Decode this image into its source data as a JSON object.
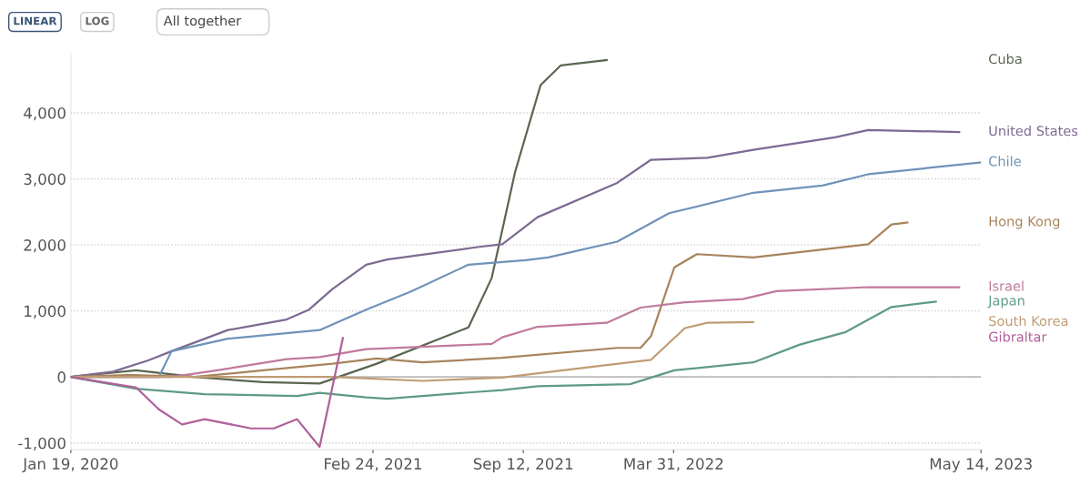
{
  "chart_data": {
    "type": "line",
    "annotations": [
      "LINEAR",
      "LOG",
      "All together"
    ],
    "xlim": [
      "2020-01-19",
      "2023-05-14"
    ],
    "xticks": [
      {
        "value": "2020-01-19",
        "label": "Jan 19, 2020"
      },
      {
        "value": "2021-02-24",
        "label": "Feb 24, 2021"
      },
      {
        "value": "2021-09-12",
        "label": "Sep 12, 2021"
      },
      {
        "value": "2022-03-31",
        "label": "Mar 31, 2022"
      },
      {
        "value": "2023-05-14",
        "label": "May 14, 2023"
      }
    ],
    "ylim": [
      -1100,
      4900
    ],
    "yticks": [
      {
        "value": -1000,
        "label": "-1,000"
      },
      0,
      {
        "value": 1000,
        "label": "1,000"
      },
      {
        "value": 2000,
        "label": "2,000"
      },
      {
        "value": 3000,
        "label": "3,000"
      },
      {
        "value": 4000,
        "label": "4,000"
      }
    ],
    "grid": "y",
    "legend": false,
    "marker": "none",
    "line_style": "solid",
    "ref_lines": [
      {
        "axis": "y",
        "value": 0,
        "color": "#bbbbbb"
      }
    ],
    "series": [
      {
        "name": "Cuba",
        "color": "#5b6650",
        "x": [
          "2020-01-19",
          "2020-04-15",
          "2020-07-01",
          "2020-10-01",
          "2020-12-15",
          "2021-03-01",
          "2021-07-01",
          "2021-08-01",
          "2021-09-01",
          "2021-10-05",
          "2021-11-01",
          "2022-01-01"
        ],
        "values": [
          0,
          100,
          0,
          -80,
          -100,
          200,
          750,
          1500,
          3100,
          4420,
          4720,
          4800
        ]
      },
      {
        "name": "United States",
        "color": "#7d6a92",
        "x": [
          "2020-01-19",
          "2020-03-15",
          "2020-05-01",
          "2020-06-01",
          "2020-08-15",
          "2020-11-01",
          "2020-12-01",
          "2021-01-01",
          "2021-02-15",
          "2021-03-15",
          "2021-07-15",
          "2021-08-15",
          "2021-10-01",
          "2022-01-15",
          "2022-03-01",
          "2022-05-15",
          "2022-07-15",
          "2022-11-01",
          "2022-12-15",
          "2023-04-15"
        ],
        "values": [
          0,
          80,
          250,
          390,
          710,
          870,
          1020,
          1330,
          1700,
          1780,
          1970,
          2010,
          2420,
          2940,
          3290,
          3320,
          3440,
          3630,
          3740,
          3710
        ]
      },
      {
        "name": "Chile",
        "color": "#6f93b8",
        "x": [
          "2020-01-19",
          "2020-05-15",
          "2020-06-01",
          "2020-08-15",
          "2020-12-15",
          "2021-02-15",
          "2021-04-15",
          "2021-07-01",
          "2021-09-15",
          "2021-10-15",
          "2022-01-15",
          "2022-03-25",
          "2022-07-15",
          "2022-10-15",
          "2022-12-15",
          "2023-05-14"
        ],
        "values": [
          0,
          0,
          390,
          580,
          710,
          1020,
          1290,
          1700,
          1770,
          1810,
          2050,
          2480,
          2790,
          2900,
          3070,
          3250
        ]
      },
      {
        "name": "Hong Kong",
        "color": "#a8845e",
        "x": [
          "2020-01-19",
          "2020-04-01",
          "2020-07-01",
          "2020-10-01",
          "2021-01-01",
          "2021-03-01",
          "2021-05-01",
          "2021-08-15",
          "2022-01-15",
          "2022-02-15",
          "2022-03-01",
          "2022-04-01",
          "2022-05-01",
          "2022-07-15",
          "2022-12-15",
          "2023-01-15",
          "2023-02-05"
        ],
        "values": [
          0,
          30,
          0,
          100,
          200,
          280,
          220,
          290,
          440,
          440,
          620,
          1660,
          1860,
          1810,
          2010,
          2310,
          2340
        ]
      },
      {
        "name": "Israel",
        "color": "#c07a9c",
        "x": [
          "2020-01-19",
          "2020-06-01",
          "2020-08-01",
          "2020-11-01",
          "2020-12-15",
          "2021-02-15",
          "2021-08-01",
          "2021-08-15",
          "2021-10-01",
          "2022-01-01",
          "2022-02-15",
          "2022-04-15",
          "2022-07-01",
          "2022-08-15",
          "2022-12-15",
          "2023-04-15"
        ],
        "values": [
          0,
          0,
          100,
          270,
          300,
          420,
          500,
          600,
          760,
          820,
          1050,
          1130,
          1180,
          1300,
          1360,
          1360
        ]
      },
      {
        "name": "Japan",
        "color": "#5e9a8a",
        "x": [
          "2020-01-19",
          "2020-04-15",
          "2020-07-15",
          "2020-11-15",
          "2020-12-15",
          "2021-02-15",
          "2021-03-15",
          "2021-06-01",
          "2021-08-15",
          "2021-10-01",
          "2022-02-01",
          "2022-04-01",
          "2022-07-15",
          "2022-09-15",
          "2022-11-15",
          "2023-01-15",
          "2023-03-15"
        ],
        "values": [
          0,
          -180,
          -260,
          -290,
          -240,
          -310,
          -330,
          -260,
          -200,
          -140,
          -110,
          100,
          220,
          490,
          680,
          1060,
          1140
        ]
      },
      {
        "name": "South Korea",
        "color": "#c09c74",
        "x": [
          "2020-01-19",
          "2020-06-01",
          "2021-01-01",
          "2021-05-01",
          "2021-08-15",
          "2022-01-01",
          "2022-03-01",
          "2022-04-15",
          "2022-05-15",
          "2022-07-15"
        ],
        "values": [
          0,
          0,
          0,
          -60,
          -10,
          180,
          260,
          740,
          820,
          830
        ]
      },
      {
        "name": "Gibraltar",
        "color": "#b0609a",
        "x": [
          "2020-01-19",
          "2020-04-15",
          "2020-05-15",
          "2020-06-15",
          "2020-07-15",
          "2020-09-15",
          "2020-10-15",
          "2020-11-15",
          "2020-12-15",
          "2021-01-15"
        ],
        "values": [
          0,
          -160,
          -490,
          -720,
          -640,
          -780,
          -780,
          -640,
          -1060,
          590
        ]
      }
    ]
  }
}
